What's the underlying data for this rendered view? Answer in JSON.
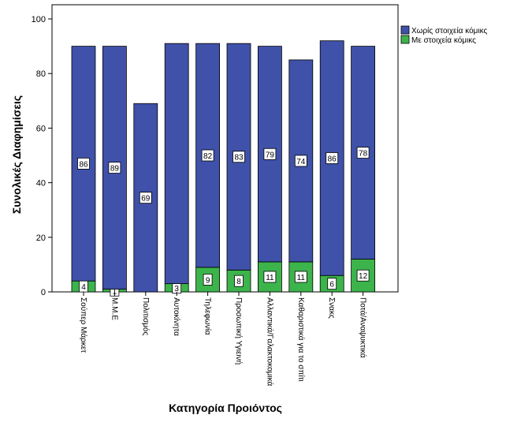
{
  "chart_data": {
    "type": "bar",
    "stacked": true,
    "xlabel": "Κατηγορία Προιόντος",
    "ylabel": "Συνολικές Διαφημίσεις",
    "ylim": [
      0,
      100
    ],
    "yticks": [
      0,
      20,
      40,
      60,
      80,
      100
    ],
    "categories": [
      "Σούπερ Μάρκετ",
      "Μ.Μ.Ε",
      "Πολιτισμός",
      "Αυτοκίνητα",
      "Τηλεφωνία",
      "Προσωπική Υγιεινή",
      "Αλλαντικά/Γαλακτοκομικά",
      "Καθαριστικά για το σπίτι",
      "Σνακς",
      "Ποτά/Αναψυκτικά"
    ],
    "series": [
      {
        "name": "Με στοιχεία κόμικς",
        "color": "#3cb44b",
        "values": [
          4,
          1,
          0,
          3,
          9,
          8,
          11,
          11,
          6,
          12
        ],
        "labels": [
          "4",
          "1",
          "",
          "3",
          "9",
          "8",
          "11",
          "11",
          "6",
          "12"
        ]
      },
      {
        "name": "Χωρίς στοιχεία κόμικς",
        "color": "#3f51a8",
        "values": [
          86,
          89,
          69,
          88,
          82,
          83,
          79,
          74,
          86,
          78
        ],
        "labels": [
          "86",
          "89",
          "69",
          "",
          "82",
          "83",
          "79",
          "74",
          "86",
          "78"
        ]
      }
    ],
    "legend": [
      "Χωρίς στοιχεία κόμικς",
      "Με στοιχεία κόμικς"
    ],
    "legend_position": "top-right",
    "grid": false
  }
}
